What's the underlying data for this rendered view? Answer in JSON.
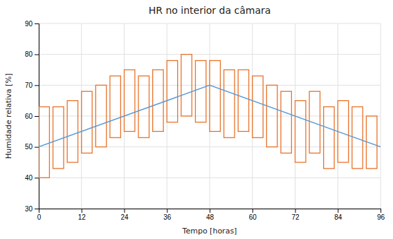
{
  "chart_data": {
    "type": "line",
    "title": "HR no interior da câmara",
    "xlabel": "Tempo [horas]",
    "ylabel": "Humidade relativa [%]",
    "xlim": [
      0,
      96
    ],
    "ylim": [
      30,
      90
    ],
    "xticks": [
      0,
      12,
      24,
      36,
      48,
      60,
      72,
      84,
      96
    ],
    "yticks": [
      30,
      40,
      50,
      60,
      70,
      80,
      90
    ],
    "grid": true,
    "series": [
      {
        "type": "rect",
        "color": "#E8722A",
        "x_start": [
          0,
          4,
          8,
          12,
          16,
          20,
          24,
          28,
          32,
          36,
          40,
          44,
          48,
          52,
          56,
          60,
          64,
          68,
          72,
          76,
          80,
          84,
          88,
          92
        ],
        "x_end": [
          3,
          7,
          11,
          15,
          19,
          23,
          27,
          31,
          35,
          39,
          43,
          47,
          51,
          55,
          59,
          63,
          67,
          71,
          75,
          79,
          83,
          87,
          91,
          95
        ],
        "low": [
          40,
          43,
          45,
          48,
          50,
          53,
          55,
          53,
          55,
          58,
          60,
          58,
          55,
          53,
          55,
          53,
          50,
          48,
          45,
          48,
          43,
          45,
          43,
          43
        ],
        "high": [
          63,
          63,
          65,
          68,
          70,
          73,
          75,
          73,
          75,
          78,
          80,
          78,
          78,
          75,
          75,
          73,
          70,
          68,
          65,
          68,
          63,
          65,
          63,
          60
        ]
      },
      {
        "type": "line",
        "color": "#5B9BD5",
        "x": [
          0,
          48,
          96
        ],
        "values": [
          50,
          70,
          50
        ]
      }
    ]
  }
}
